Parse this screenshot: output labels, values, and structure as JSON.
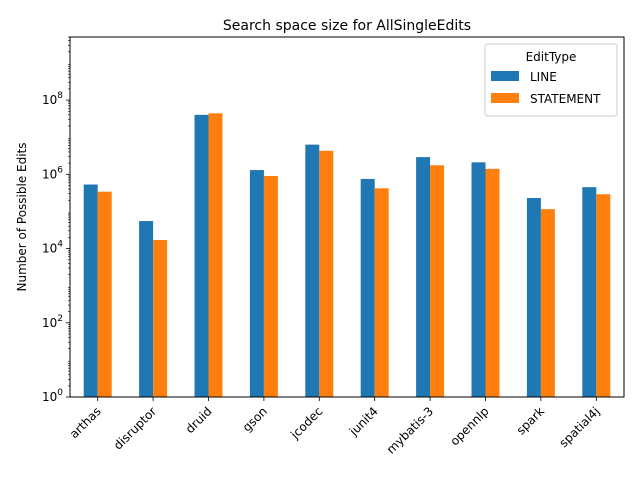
{
  "chart_data": {
    "type": "bar",
    "title": "Search space size for AllSingleEdits",
    "xlabel": "",
    "ylabel": "Number of Possible Edits",
    "yscale": "log",
    "ylim": [
      1,
      5000000000
    ],
    "yticks": [
      {
        "value": 1,
        "base": "10",
        "exp": "0"
      },
      {
        "value": 100,
        "base": "10",
        "exp": "2"
      },
      {
        "value": 10000,
        "base": "10",
        "exp": "4"
      },
      {
        "value": 1000000,
        "base": "10",
        "exp": "6"
      },
      {
        "value": 100000000,
        "base": "10",
        "exp": "8"
      }
    ],
    "categories": [
      "arthas",
      "disruptor",
      "druid",
      "gson",
      "jcodec",
      "junit4",
      "mybatis-3",
      "opennlp",
      "spark",
      "spatial4j"
    ],
    "series": [
      {
        "name": "LINE",
        "color": "#1f77b4",
        "values": [
          530000,
          55000,
          40000000,
          1300000,
          6300000,
          750000,
          2900000,
          2100000,
          230000,
          450000
        ]
      },
      {
        "name": "STATEMENT",
        "color": "#ff7f0e",
        "values": [
          340000,
          17000,
          44000000,
          900000,
          4300000,
          420000,
          1750000,
          1400000,
          115000,
          290000
        ]
      }
    ],
    "legend": {
      "title": "EditType",
      "position": "top-right"
    },
    "grid": false
  }
}
